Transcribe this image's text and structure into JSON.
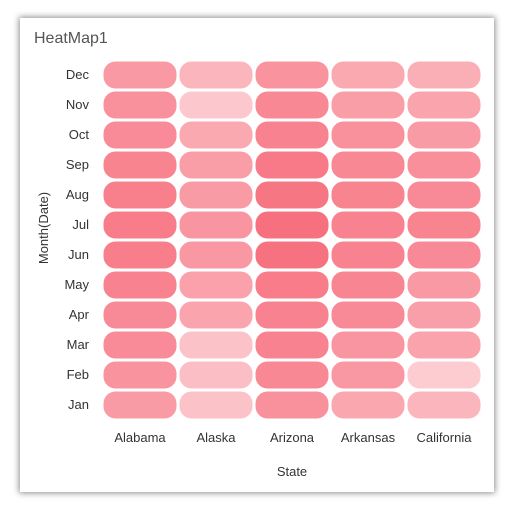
{
  "widget": {
    "title": "HeatMap1"
  },
  "chart_data": {
    "type": "heatmap",
    "title": "HeatMap1",
    "xlabel": "State",
    "ylabel": "Month(Date)",
    "x_categories": [
      "Alabama",
      "Alaska",
      "Arizona",
      "Arkansas",
      "California"
    ],
    "y_categories": [
      "Dec",
      "Nov",
      "Oct",
      "Sep",
      "Aug",
      "Jul",
      "Jun",
      "May",
      "Apr",
      "Mar",
      "Feb",
      "Jan"
    ],
    "color_range": [
      "#fcd2d6",
      "#f7707f"
    ],
    "intensity": [
      [
        0.58,
        0.3,
        0.64,
        0.42,
        0.36
      ],
      [
        0.66,
        0.1,
        0.76,
        0.54,
        0.46
      ],
      [
        0.72,
        0.42,
        0.82,
        0.66,
        0.56
      ],
      [
        0.8,
        0.54,
        0.9,
        0.76,
        0.68
      ],
      [
        0.84,
        0.56,
        0.94,
        0.8,
        0.74
      ],
      [
        0.88,
        0.62,
        1.0,
        0.82,
        0.8
      ],
      [
        0.86,
        0.6,
        0.98,
        0.82,
        0.74
      ],
      [
        0.82,
        0.5,
        0.88,
        0.78,
        0.58
      ],
      [
        0.74,
        0.46,
        0.82,
        0.74,
        0.52
      ],
      [
        0.72,
        0.16,
        0.82,
        0.62,
        0.48
      ],
      [
        0.64,
        0.2,
        0.76,
        0.6,
        0.06
      ],
      [
        0.56,
        0.16,
        0.66,
        0.44,
        0.3
      ]
    ]
  }
}
